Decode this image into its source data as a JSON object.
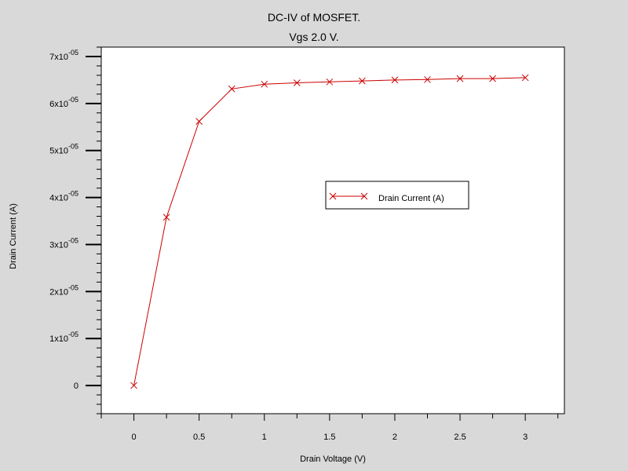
{
  "chart_data": {
    "type": "line",
    "title": "DC-IV of MOSFET.",
    "subtitle": "Vgs 2.0 V.",
    "xlabel": "Drain Voltage (V)",
    "ylabel": "Drain Current (A)",
    "xlim": [
      -0.25,
      3.3
    ],
    "ylim": [
      -6e-06,
      7.2e-05
    ],
    "x_ticks": [
      0,
      0.5,
      1,
      1.5,
      2,
      2.5,
      3
    ],
    "x_tick_labels": [
      "0",
      "0.5",
      "1",
      "1.5",
      "2",
      "2.5",
      "3"
    ],
    "y_ticks": [
      0,
      1e-05,
      2e-05,
      3e-05,
      4e-05,
      5e-05,
      6e-05,
      7e-05
    ],
    "y_tick_labels": [
      {
        "mantissa": "0",
        "exponent": ""
      },
      {
        "mantissa": "1x10",
        "exponent": "-05"
      },
      {
        "mantissa": "2x10",
        "exponent": "-05"
      },
      {
        "mantissa": "3x10",
        "exponent": "-05"
      },
      {
        "mantissa": "4x10",
        "exponent": "-05"
      },
      {
        "mantissa": "5x10",
        "exponent": "-05"
      },
      {
        "mantissa": "6x10",
        "exponent": "-05"
      },
      {
        "mantissa": "7x10",
        "exponent": "-05"
      }
    ],
    "grid": false,
    "legend_position": "center-right",
    "series": [
      {
        "name": "Drain Current (A)",
        "color": "#cc0000",
        "marker": "x",
        "x": [
          0,
          0.25,
          0.5,
          0.75,
          1.0,
          1.25,
          1.5,
          1.75,
          2.0,
          2.25,
          2.5,
          2.75,
          3.0
        ],
        "y": [
          0,
          3.58e-05,
          5.62e-05,
          6.31e-05,
          6.41e-05,
          6.44e-05,
          6.46e-05,
          6.48e-05,
          6.5e-05,
          6.51e-05,
          6.53e-05,
          6.53e-05,
          6.55e-05
        ]
      }
    ]
  }
}
